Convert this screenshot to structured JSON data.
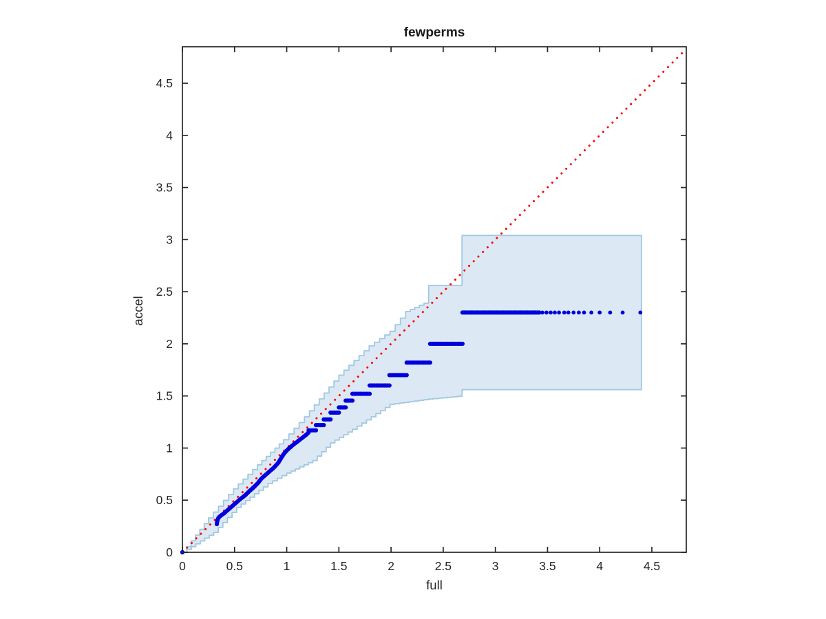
{
  "chart_data": {
    "type": "scatter",
    "title": "fewperms",
    "xlabel": "full",
    "ylabel": "accel",
    "xlim": [
      0,
      4.83
    ],
    "ylim": [
      0,
      4.85
    ],
    "grid": false,
    "legend": "none",
    "xticks": [
      0,
      0.5,
      1,
      1.5,
      2,
      2.5,
      3,
      3.5,
      4,
      4.5
    ],
    "yticks": [
      0,
      0.5,
      1,
      1.5,
      2,
      2.5,
      3,
      3.5,
      4,
      4.5
    ],
    "xtick_labels": [
      "0",
      "0.5",
      "1",
      "1.5",
      "2",
      "2.5",
      "3",
      "3.5",
      "4",
      "4.5"
    ],
    "ytick_labels": [
      "0",
      "0.5",
      "1",
      "1.5",
      "2",
      "2.5",
      "3",
      "3.5",
      "4",
      "4.5"
    ],
    "colors": {
      "background": "#ffffff",
      "axis": "#262626",
      "points": "#0000dd",
      "reference_line": "#ff0000",
      "band_fill": "#dce9f5",
      "band_edge": "#a0c8e0"
    },
    "reference_line": {
      "style": "dotted",
      "from": [
        0,
        0
      ],
      "to": [
        4.83,
        4.83
      ]
    },
    "confidence_band": {
      "upper": [
        [
          0,
          0
        ],
        [
          0.25,
          0.33
        ],
        [
          0.49,
          0.61
        ],
        [
          0.72,
          0.84
        ],
        [
          0.97,
          1.08
        ],
        [
          1.17,
          1.3
        ],
        [
          1.5,
          1.7
        ],
        [
          1.79,
          1.98
        ],
        [
          1.99,
          2.12
        ],
        [
          2.14,
          2.31
        ],
        [
          2.36,
          2.41
        ],
        [
          2.36,
          2.56
        ],
        [
          2.68,
          2.56
        ],
        [
          2.68,
          3.04
        ],
        [
          4.4,
          3.04
        ]
      ],
      "lower": [
        [
          0,
          0
        ],
        [
          0.3,
          0.19
        ],
        [
          0.52,
          0.43
        ],
        [
          0.82,
          0.66
        ],
        [
          1.0,
          0.76
        ],
        [
          1.25,
          0.88
        ],
        [
          1.42,
          1.05
        ],
        [
          1.63,
          1.18
        ],
        [
          1.99,
          1.42
        ],
        [
          2.36,
          1.47
        ],
        [
          2.68,
          1.5
        ],
        [
          2.68,
          1.56
        ],
        [
          4.4,
          1.56
        ]
      ],
      "right_edge_x": 4.4
    },
    "points": {
      "origin": [
        0,
        0
      ],
      "dense_curve": [
        [
          0.33,
          0.27
        ],
        [
          0.335,
          0.305
        ],
        [
          0.345,
          0.33
        ],
        [
          0.36,
          0.345
        ],
        [
          0.4,
          0.375
        ],
        [
          0.44,
          0.41
        ],
        [
          0.48,
          0.445
        ],
        [
          0.52,
          0.48
        ],
        [
          0.56,
          0.515
        ],
        [
          0.6,
          0.545
        ],
        [
          0.64,
          0.585
        ],
        [
          0.68,
          0.62
        ],
        [
          0.72,
          0.66
        ],
        [
          0.76,
          0.71
        ],
        [
          0.8,
          0.745
        ],
        [
          0.84,
          0.78
        ],
        [
          0.88,
          0.815
        ],
        [
          0.92,
          0.86
        ],
        [
          0.95,
          0.91
        ],
        [
          0.98,
          0.955
        ],
        [
          1.02,
          0.995
        ],
        [
          1.06,
          1.03
        ],
        [
          1.1,
          1.06
        ],
        [
          1.145,
          1.095
        ],
        [
          1.19,
          1.13
        ],
        [
          1.21,
          1.15
        ]
      ],
      "tie_rows": [
        {
          "y": 1.17,
          "x0": 1.21,
          "x1": 1.28
        },
        {
          "y": 1.22,
          "x0": 1.28,
          "x1": 1.355
        },
        {
          "y": 1.275,
          "x0": 1.355,
          "x1": 1.42
        },
        {
          "y": 1.34,
          "x0": 1.42,
          "x1": 1.5
        },
        {
          "y": 1.39,
          "x0": 1.5,
          "x1": 1.565
        },
        {
          "y": 1.455,
          "x0": 1.565,
          "x1": 1.63
        },
        {
          "y": 1.52,
          "x0": 1.63,
          "x1": 1.795
        },
        {
          "y": 1.6,
          "x0": 1.795,
          "x1": 1.985
        },
        {
          "y": 1.7,
          "x0": 1.985,
          "x1": 2.15
        },
        {
          "y": 1.82,
          "x0": 2.15,
          "x1": 2.375
        },
        {
          "y": 2.0,
          "x0": 2.375,
          "x1": 2.685
        },
        {
          "y": 2.3,
          "x0": 2.685,
          "x1": 3.42
        }
      ],
      "sparse_tail": {
        "y": 2.3,
        "x": [
          3.45,
          3.49,
          3.53,
          3.57,
          3.61,
          3.66,
          3.7,
          3.75,
          3.8,
          3.85,
          3.92,
          4.0,
          4.1,
          4.22,
          4.39
        ]
      }
    }
  }
}
